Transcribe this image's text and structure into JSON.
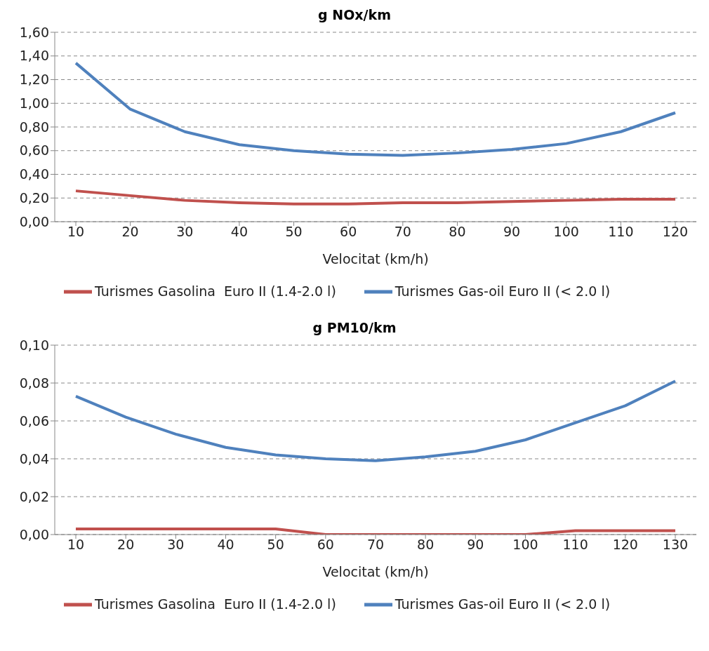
{
  "chart_data": [
    {
      "type": "line",
      "title": "g NOx/km",
      "xlabel": "Velocitat (km/h)",
      "categories": [
        "10",
        "20",
        "30",
        "40",
        "50",
        "60",
        "70",
        "80",
        "90",
        "100",
        "110",
        "120"
      ],
      "series": [
        {
          "name": "Turismes Gasolina  Euro II (1.4-2.0 l)",
          "color": "#c0504d",
          "values": [
            0.26,
            0.22,
            0.18,
            0.16,
            0.15,
            0.15,
            0.16,
            0.16,
            0.17,
            0.18,
            0.19,
            0.19
          ]
        },
        {
          "name": "Turismes Gas-oil Euro II (< 2.0 l)",
          "color": "#4f81bd",
          "values": [
            1.34,
            0.95,
            0.76,
            0.65,
            0.6,
            0.57,
            0.56,
            0.58,
            0.61,
            0.66,
            0.76,
            0.92
          ]
        }
      ],
      "ylim": [
        0,
        1.6
      ],
      "yticks": [
        {
          "value": 0,
          "label": "0,00"
        },
        {
          "value": 0.2,
          "label": "0,20"
        },
        {
          "value": 0.4,
          "label": "0,40"
        },
        {
          "value": 0.6,
          "label": "0,60"
        },
        {
          "value": 0.8,
          "label": "0,80"
        },
        {
          "value": 1.0,
          "label": "1,00"
        },
        {
          "value": 1.2,
          "label": "1,20"
        },
        {
          "value": 1.4,
          "label": "1,40"
        },
        {
          "value": 1.6,
          "label": "1,60"
        }
      ],
      "grid": "y",
      "legend": "bottom",
      "marker": "none",
      "line_style": "solid"
    },
    {
      "type": "line",
      "title": "g PM10/km",
      "xlabel": "Velocitat (km/h)",
      "categories": [
        "10",
        "20",
        "30",
        "40",
        "50",
        "60",
        "70",
        "80",
        "90",
        "100",
        "110",
        "120",
        "130"
      ],
      "series": [
        {
          "name": "Turismes Gasolina  Euro II (1.4-2.0 l)",
          "color": "#c0504d",
          "values": [
            0.003,
            0.003,
            0.003,
            0.003,
            0.003,
            0.0,
            0.0,
            0.0,
            0.0,
            0.0,
            0.002,
            0.002,
            0.002
          ]
        },
        {
          "name": "Turismes Gas-oil Euro II (< 2.0 l)",
          "color": "#4f81bd",
          "values": [
            0.073,
            0.062,
            0.053,
            0.046,
            0.042,
            0.04,
            0.039,
            0.041,
            0.044,
            0.05,
            0.059,
            0.068,
            0.081
          ]
        }
      ],
      "ylim": [
        0,
        0.1
      ],
      "yticks": [
        {
          "value": 0,
          "label": "0,00"
        },
        {
          "value": 0.02,
          "label": "0,02"
        },
        {
          "value": 0.04,
          "label": "0,04"
        },
        {
          "value": 0.06,
          "label": "0,06"
        },
        {
          "value": 0.08,
          "label": "0,08"
        },
        {
          "value": 0.1,
          "label": "0,10"
        }
      ],
      "grid": "y",
      "legend": "bottom",
      "marker": "none",
      "line_style": "solid"
    }
  ]
}
